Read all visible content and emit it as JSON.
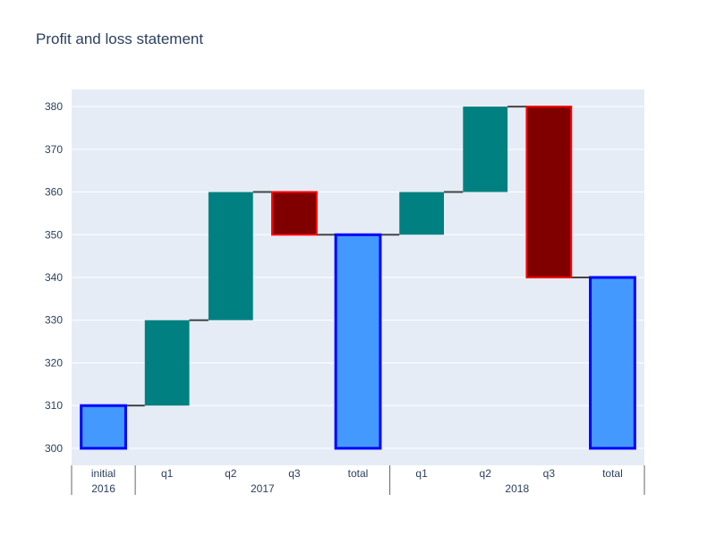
{
  "chart_data": {
    "type": "waterfall",
    "title": "Profit and loss statement",
    "xlabel": "",
    "ylabel": "",
    "ylim": [
      296,
      384
    ],
    "yticks": [
      300,
      310,
      320,
      330,
      340,
      350,
      360,
      370,
      380
    ],
    "grid": true,
    "legend": "none",
    "base": 300,
    "groups": [
      {
        "label": "2016",
        "count": 1
      },
      {
        "label": "2017",
        "count": 4
      },
      {
        "label": "2018",
        "count": 4
      }
    ],
    "categories": [
      "initial",
      "q1",
      "q2",
      "q3",
      "total",
      "q1",
      "q2",
      "q3",
      "total"
    ],
    "measures": [
      "absolute",
      "relative",
      "relative",
      "relative",
      "total",
      "relative",
      "relative",
      "relative",
      "total"
    ],
    "values": [
      10,
      20,
      30,
      -10,
      null,
      10,
      20,
      -40,
      null
    ],
    "colors": {
      "increasing": "#008080",
      "decreasing": "#800000",
      "decreasing_outline": "#ff0000",
      "totals": "#4499ff",
      "totals_outline": "#0000ff",
      "connector": "#444444",
      "plot_bg": "#e5ecf6",
      "grid": "#ffffff"
    }
  }
}
